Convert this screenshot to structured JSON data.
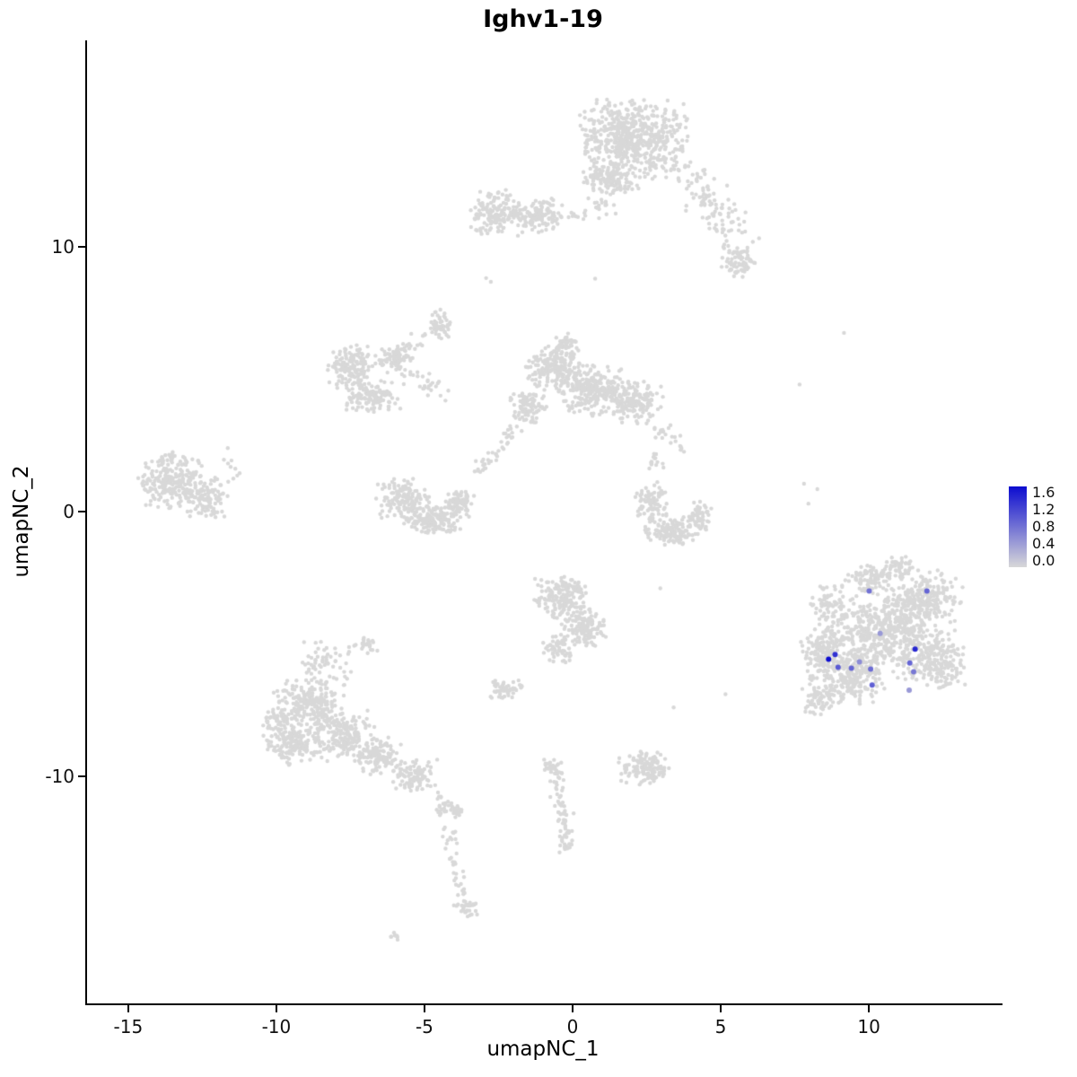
{
  "chart_data": {
    "type": "scatter",
    "title": "Ighv1-19",
    "xlabel": "umapNC_1",
    "ylabel": "umapNC_2",
    "xlim": [
      -16.45,
      14.45
    ],
    "ylim": [
      -18.58,
      17.8
    ],
    "x_ticks": [
      -15,
      -10,
      -5,
      0,
      5,
      10
    ],
    "y_ticks": [
      10,
      0,
      -10
    ],
    "grid": false,
    "legend_position": "right",
    "color_scale": {
      "low": "#D8D8D8",
      "high": "#0C0CD0",
      "domain": [
        0.0,
        1.6
      ]
    },
    "legend": {
      "tick_labels": [
        "1.6",
        "1.2",
        "0.8",
        "0.4",
        "0.0"
      ],
      "tick_values": [
        1.6,
        1.2,
        0.8,
        0.4,
        0.0
      ],
      "bar_range": [
        -0.15,
        1.75
      ]
    },
    "expression_points": [
      {
        "x": 9.95,
        "y": -3.0,
        "value": 0.8
      },
      {
        "x": 11.9,
        "y": -3.0,
        "value": 0.9
      },
      {
        "x": 8.58,
        "y": -5.58,
        "value": 1.6
      },
      {
        "x": 8.8,
        "y": -5.4,
        "value": 1.3
      },
      {
        "x": 8.9,
        "y": -5.88,
        "value": 1.0
      },
      {
        "x": 9.35,
        "y": -5.92,
        "value": 0.9
      },
      {
        "x": 9.62,
        "y": -5.68,
        "value": 0.6
      },
      {
        "x": 10.0,
        "y": -5.95,
        "value": 0.85
      },
      {
        "x": 10.32,
        "y": -4.6,
        "value": 0.5
      },
      {
        "x": 11.5,
        "y": -5.2,
        "value": 1.4
      },
      {
        "x": 11.32,
        "y": -5.72,
        "value": 0.9
      },
      {
        "x": 11.45,
        "y": -6.05,
        "value": 0.75
      },
      {
        "x": 10.05,
        "y": -6.55,
        "value": 0.95
      },
      {
        "x": 11.3,
        "y": -6.75,
        "value": 0.5
      }
    ],
    "background_density": {
      "blobs": [
        [
          2.0,
          14.1,
          1.7,
          1.4,
          600
        ],
        [
          1.2,
          12.6,
          1.0,
          0.55,
          120
        ],
        [
          0.9,
          11.6,
          0.45,
          0.7,
          22
        ],
        [
          5.55,
          9.5,
          0.55,
          0.6,
          70
        ],
        [
          -2.6,
          11.3,
          0.85,
          0.8,
          150
        ],
        [
          -1.25,
          11.2,
          0.8,
          0.6,
          120
        ],
        [
          -4.5,
          7.0,
          0.4,
          0.6,
          45
        ],
        [
          -7.5,
          5.4,
          0.75,
          0.85,
          150
        ],
        [
          -6.8,
          4.3,
          0.85,
          0.6,
          120
        ],
        [
          -6.1,
          5.8,
          0.6,
          0.5,
          80
        ],
        [
          -0.6,
          5.4,
          0.95,
          0.8,
          200
        ],
        [
          0.6,
          4.6,
          0.95,
          0.9,
          220
        ],
        [
          2.0,
          4.2,
          0.9,
          0.8,
          180
        ],
        [
          -1.6,
          3.9,
          0.65,
          0.6,
          90
        ],
        [
          -0.3,
          6.35,
          0.45,
          0.35,
          40
        ],
        [
          -13.6,
          1.2,
          1.05,
          1.0,
          220
        ],
        [
          -12.5,
          0.5,
          0.8,
          0.8,
          120
        ],
        [
          -5.8,
          0.5,
          0.85,
          0.7,
          140
        ],
        [
          -4.8,
          -0.3,
          0.9,
          0.6,
          160
        ],
        [
          -3.9,
          0.35,
          0.5,
          0.5,
          70
        ],
        [
          2.75,
          1.9,
          0.28,
          0.28,
          15
        ],
        [
          2.6,
          0.4,
          0.5,
          0.75,
          90
        ],
        [
          3.3,
          -0.75,
          0.85,
          0.5,
          130
        ],
        [
          4.25,
          -0.2,
          0.4,
          0.65,
          60
        ],
        [
          -0.4,
          -3.2,
          0.9,
          0.75,
          180
        ],
        [
          0.3,
          -4.4,
          0.7,
          0.7,
          130
        ],
        [
          -0.55,
          -5.2,
          0.5,
          0.5,
          60
        ],
        [
          -2.3,
          -6.75,
          0.55,
          0.4,
          55
        ],
        [
          -8.9,
          -7.3,
          1.15,
          1.0,
          230
        ],
        [
          -9.4,
          -8.7,
          0.9,
          0.8,
          170
        ],
        [
          -7.8,
          -8.5,
          1.0,
          0.9,
          180
        ],
        [
          -6.6,
          -9.3,
          0.8,
          0.7,
          120
        ],
        [
          -5.4,
          -10.0,
          0.7,
          0.6,
          90
        ],
        [
          -8.4,
          -5.7,
          1.0,
          0.75,
          55
        ],
        [
          -10.2,
          -8.0,
          0.45,
          0.55,
          40
        ],
        [
          -7.0,
          -5.0,
          0.5,
          0.4,
          22
        ],
        [
          -3.7,
          -15.0,
          0.38,
          0.3,
          30
        ],
        [
          -4.05,
          -11.2,
          0.3,
          0.4,
          20
        ],
        [
          -6.1,
          -16.05,
          0.2,
          0.13,
          8
        ],
        [
          -0.75,
          -9.6,
          0.35,
          0.3,
          25
        ],
        [
          -0.3,
          -12.55,
          0.25,
          0.3,
          15
        ],
        [
          2.35,
          -9.7,
          0.85,
          0.6,
          130
        ],
        [
          10.6,
          -4.6,
          2.2,
          1.6,
          650
        ],
        [
          9.2,
          -6.3,
          1.2,
          1.0,
          220
        ],
        [
          11.9,
          -3.2,
          1.1,
          0.9,
          180
        ],
        [
          8.5,
          -5.3,
          0.8,
          0.9,
          130
        ],
        [
          12.3,
          -5.8,
          0.95,
          0.8,
          140
        ],
        [
          9.9,
          -2.5,
          0.8,
          0.5,
          80
        ],
        [
          11.0,
          -2.1,
          0.55,
          0.4,
          50
        ],
        [
          8.2,
          -7.2,
          0.55,
          0.5,
          50
        ],
        [
          8.6,
          -3.5,
          0.65,
          0.75,
          60
        ]
      ],
      "trails": [
        [
          3.8,
          13.0,
          5.5,
          10.2,
          0.7,
          110
        ],
        [
          -0.5,
          11.3,
          0.5,
          11.0,
          0.3,
          12
        ],
        [
          -5.6,
          5.2,
          -4.4,
          4.5,
          0.35,
          30
        ],
        [
          -5.9,
          5.9,
          -4.7,
          6.9,
          0.3,
          18
        ],
        [
          -2.0,
          3.3,
          -3.3,
          1.4,
          0.3,
          40
        ],
        [
          2.9,
          3.3,
          3.6,
          2.3,
          0.3,
          22
        ],
        [
          -4.6,
          -10.6,
          -3.65,
          -14.8,
          0.25,
          55
        ],
        [
          -0.65,
          -9.8,
          -0.25,
          -12.6,
          0.28,
          60
        ],
        [
          -11.9,
          2.3,
          -11.2,
          1.2,
          0.35,
          7
        ]
      ],
      "singles": [
        [
          -2.82,
          8.68
        ],
        [
          -2.98,
          8.82
        ],
        [
          9.1,
          6.75
        ],
        [
          7.6,
          4.8
        ],
        [
          7.75,
          1.05
        ],
        [
          7.9,
          0.3
        ],
        [
          8.2,
          0.85
        ],
        [
          5.1,
          -6.9
        ],
        [
          3.35,
          -7.4
        ],
        [
          2.9,
          -2.9
        ],
        [
          -11.7,
          2.4
        ],
        [
          -11.3,
          1.45
        ],
        [
          -11.95,
          1.0
        ],
        [
          0.7,
          8.8
        ]
      ]
    }
  },
  "render_hints": {
    "seed": 12,
    "gray_point_radius": 2.2,
    "highlight_point_radius": 3.0,
    "axis_color": "#000000",
    "text_color": "#111111"
  }
}
